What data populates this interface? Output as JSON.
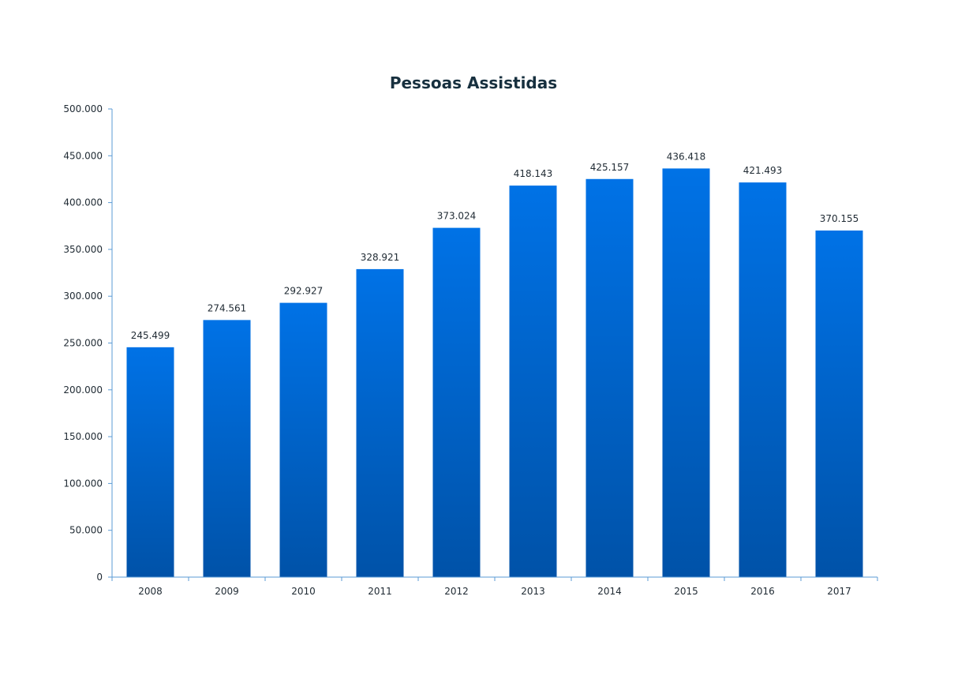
{
  "chart_data": {
    "type": "bar",
    "title": "Pessoas Assistidas",
    "xlabel": "",
    "ylabel": "",
    "categories": [
      "2008",
      "2009",
      "2010",
      "2011",
      "2012",
      "2013",
      "2014",
      "2015",
      "2016",
      "2017"
    ],
    "values": [
      245499,
      274561,
      292927,
      328921,
      373024,
      418143,
      425157,
      436418,
      421493,
      370155
    ],
    "value_labels": [
      "245.499",
      "274.561",
      "292.927",
      "328.921",
      "373.024",
      "418.143",
      "425.157",
      "436.418",
      "421.493",
      "370.155"
    ],
    "ylim": [
      0,
      500000
    ],
    "y_ticks": [
      0,
      50000,
      100000,
      150000,
      200000,
      250000,
      300000,
      350000,
      400000,
      450000,
      500000
    ],
    "y_tick_labels": [
      "0",
      "50.000",
      "100.000",
      "150.000",
      "200.000",
      "250.000",
      "300.000",
      "350.000",
      "400.000",
      "450.000",
      "500.000"
    ],
    "grid": false,
    "legend": "none",
    "colors": {
      "bar_top": "#0072e6",
      "bar_bottom": "#0052a8",
      "axis": "#5b9bd5",
      "title": "#17303f"
    }
  }
}
